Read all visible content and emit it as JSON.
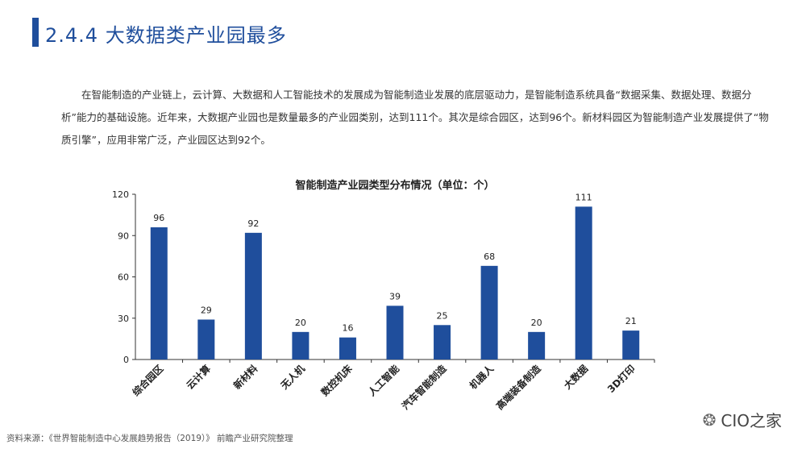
{
  "section": {
    "title": "2.4.4 大数据类产业园最多"
  },
  "paragraph": "在智能制造的产业链上，云计算、大数据和人工智能技术的发展成为智能制造业发展的底层驱动力，是智能制造系统具备“数据采集、数据处理、数据分析”能力的基础设施。近年来，大数据产业园也是数量最多的产业园类别，达到111个。其次是综合园区，达到96个。新材料园区为智能制造产业发展提供了“物质引擎”，应用非常广泛，产业园区达到92个。",
  "source": "资料来源：《世界智能制造中心发展趋势报告（2019）》 前瞻产业研究院整理",
  "watermark": {
    "text": "CIO之家",
    "icon": "wechat-icon"
  },
  "colors": {
    "accent": "#1f4e9c",
    "bar": "#1f4e9c"
  },
  "chart_data": {
    "type": "bar",
    "title": "智能制造产业园类型分布情况（单位：个）",
    "categories": [
      "综合园区",
      "云计算",
      "新材料",
      "无人机",
      "数控机床",
      "人工智能",
      "汽车智能制造",
      "机器人",
      "高端装备制造",
      "大数据",
      "3D打印"
    ],
    "values": [
      96,
      29,
      92,
      20,
      16,
      39,
      25,
      68,
      20,
      111,
      21
    ],
    "yticks": [
      0,
      30,
      60,
      90,
      120
    ],
    "ylim": [
      0,
      120
    ],
    "grid": false,
    "data_labels": true
  }
}
